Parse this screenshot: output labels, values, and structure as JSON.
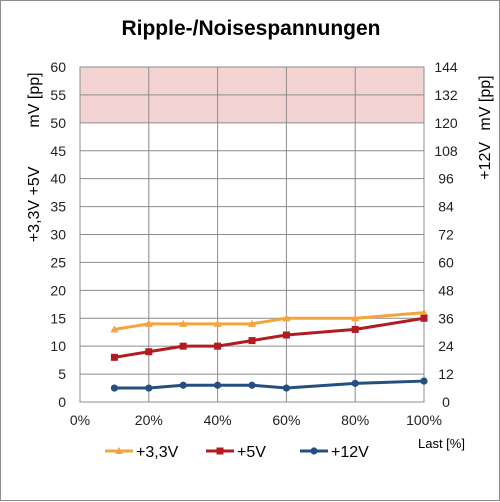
{
  "chart_data": {
    "type": "line",
    "title": "Ripple-/Noisespannungen",
    "x": [
      10,
      20,
      30,
      40,
      50,
      60,
      80,
      100
    ],
    "x_tick_labels": [
      "0%",
      "20%",
      "40%",
      "60%",
      "80%",
      "100%"
    ],
    "x_ticks": [
      0,
      20,
      40,
      60,
      80,
      100
    ],
    "x_unit_label": "Last [%]",
    "xlim": [
      0,
      100
    ],
    "y_left": {
      "label_lines": [
        "+3,3V +5V",
        "mV [pp]"
      ],
      "lim": [
        0,
        60
      ],
      "ticks": [
        0,
        5,
        10,
        15,
        20,
        25,
        30,
        35,
        40,
        45,
        50,
        55,
        60
      ]
    },
    "y_right": {
      "label_lines": [
        "+12V",
        "mV [pp]"
      ],
      "lim": [
        0,
        144
      ],
      "ticks": [
        0,
        12,
        24,
        36,
        48,
        60,
        72,
        84,
        96,
        108,
        120,
        132,
        144
      ]
    },
    "limit_band": {
      "from": 50,
      "to": 60,
      "axis": "left",
      "color": "#f4d3d3"
    },
    "grid": true,
    "legend_position": "bottom",
    "series": [
      {
        "name": "+3,3V",
        "axis": "left",
        "color": "#f5a33c",
        "marker": "triangle",
        "values": [
          13,
          14,
          14,
          14,
          14,
          15,
          15,
          16
        ]
      },
      {
        "name": "+5V",
        "axis": "left",
        "color": "#b01c22",
        "marker": "square",
        "values": [
          8,
          9,
          10,
          10,
          11,
          12,
          13,
          15
        ]
      },
      {
        "name": "+12V",
        "axis": "right",
        "color": "#254f7e",
        "marker": "circle",
        "values": [
          6,
          6,
          7.2,
          7.2,
          7.2,
          6,
          8,
          9
        ]
      }
    ]
  }
}
